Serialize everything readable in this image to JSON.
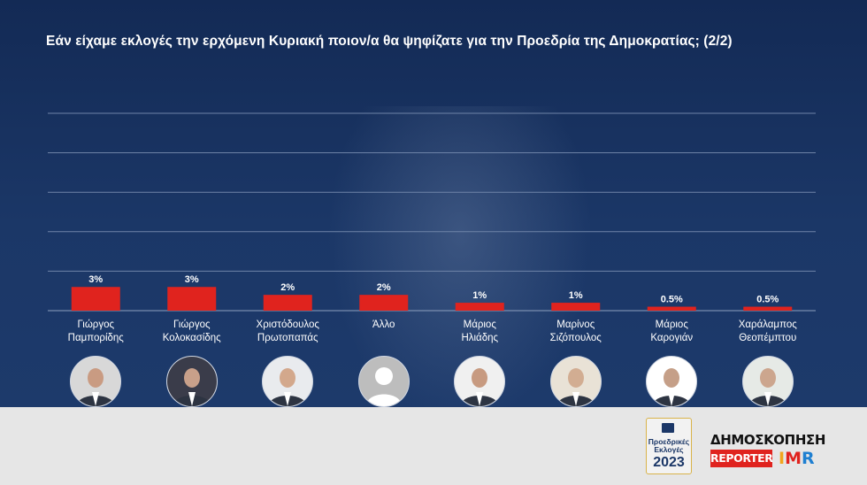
{
  "title": "Εάν είχαμε εκλογές την ερχόμενη Κυριακή ποιον/α θα ψηφίζατε για την Προεδρία της Δημοκρατίας; (2/2)",
  "chart_data": {
    "type": "bar",
    "title": "Εάν είχαμε εκλογές την ερχόμενη Κυριακή ποιον/α θα ψηφίζατε για την Προεδρία της Δημοκρατίας; (2/2)",
    "categories": [
      [
        "Γιώργος",
        "Παμπορίδης"
      ],
      [
        "Γιώργος",
        "Κολοκασίδης"
      ],
      [
        "Χριστόδουλος",
        "Πρωτοπαπάς"
      ],
      [
        "Άλλο",
        ""
      ],
      [
        "Μάριος",
        "Ηλιάδης"
      ],
      [
        "Μαρίνος",
        "Σιζόπουλος"
      ],
      [
        "Μάριος",
        "Καρογιάν"
      ],
      [
        "Χαράλαμπος",
        "Θεοπέμπτου"
      ]
    ],
    "values": [
      3,
      3,
      2,
      2,
      1,
      1,
      0.5,
      0.5
    ],
    "value_labels": [
      "3%",
      "3%",
      "2%",
      "2%",
      "1%",
      "1%",
      "0.5%",
      "0.5%"
    ],
    "ylim": [
      0,
      25
    ],
    "grid": true,
    "bar_color": "#e0231e"
  },
  "avatars": [
    "photo",
    "photo",
    "photo",
    "placeholder",
    "photo",
    "photo",
    "photo",
    "photo"
  ],
  "logos": {
    "elections_line1": "Προεδρικές",
    "elections_line2": "Εκλογές",
    "elections_year": "2023",
    "poll_title": "ΔΗΜΟΣΚΟΠΗΣΗ",
    "reporter": "REPORTER",
    "imr_i": "I",
    "imr_m": "M",
    "imr_r": "R"
  }
}
